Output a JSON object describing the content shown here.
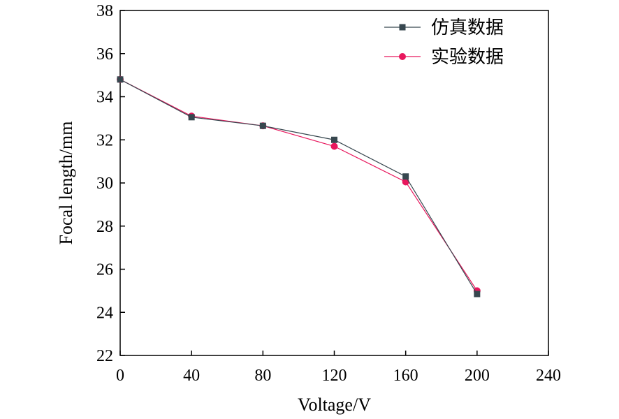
{
  "chart_data": {
    "type": "line",
    "xlabel": "Voltage/V",
    "ylabel": "Focal length/mm",
    "xlim": [
      0,
      240
    ],
    "ylim": [
      22,
      38
    ],
    "xticks": [
      "0",
      "40",
      "80",
      "120",
      "160",
      "200",
      "240"
    ],
    "yticks": [
      "22",
      "24",
      "26",
      "28",
      "30",
      "32",
      "34",
      "36",
      "38"
    ],
    "grid": false,
    "legend_position": "top-right",
    "x": [
      0,
      40,
      80,
      120,
      160,
      200
    ],
    "series": [
      {
        "name": "仿真数据",
        "marker": "square",
        "color": "#37474f",
        "values": [
          34.8,
          33.05,
          32.65,
          32.0,
          30.3,
          24.85
        ]
      },
      {
        "name": "实验数据",
        "marker": "circle",
        "color": "#e8175d",
        "values": [
          34.8,
          33.1,
          32.65,
          31.7,
          30.05,
          25.0
        ]
      }
    ]
  }
}
